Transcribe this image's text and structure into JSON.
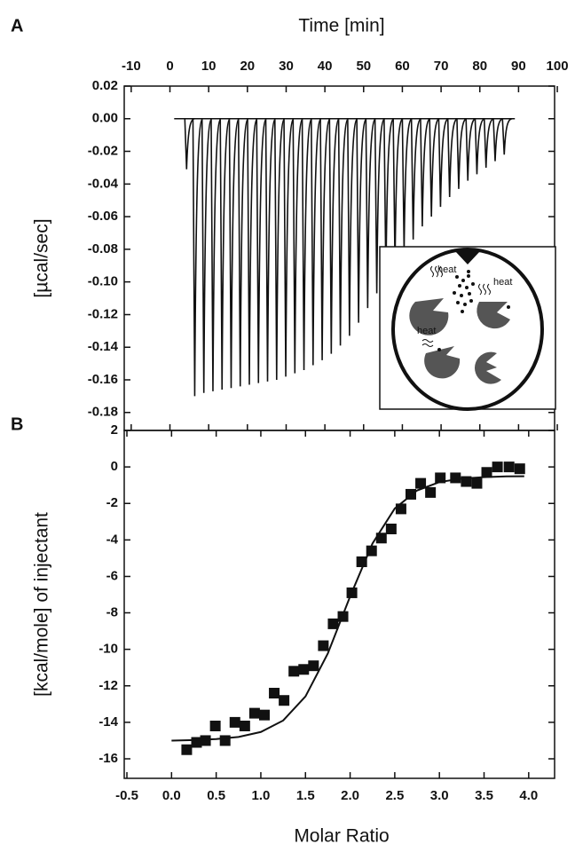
{
  "chart_data": [
    {
      "type": "peaks",
      "panel_label": "A",
      "x_label": "Time [min]",
      "y_label": "[µcal/sec]",
      "xlim": [
        -11.8,
        99.3
      ],
      "ylim": [
        -0.191,
        0.02
      ],
      "xticks": [
        -10,
        0,
        10,
        20,
        30,
        40,
        50,
        60,
        70,
        80,
        90,
        100
      ],
      "yticks": [
        0.02,
        {
          "value": 0,
          "label": "0.00"
        },
        -0.02,
        -0.04,
        -0.06,
        -0.08,
        {
          "value": -0.1,
          "label": "-0.10"
        },
        -0.12,
        -0.14,
        -0.16,
        -0.18
      ],
      "color": "#111",
      "x": [
        4.3,
        6.4,
        8.75,
        11.1,
        13.45,
        15.8,
        18.15,
        20.5,
        22.85,
        25.2,
        27.55,
        29.9,
        32.25,
        34.6,
        36.95,
        39.3,
        41.65,
        44.0,
        46.35,
        48.7,
        51.05,
        53.4,
        55.75,
        58.1,
        60.45,
        62.8,
        65.15,
        67.5,
        69.85,
        72.2,
        74.55,
        76.9,
        79.25,
        81.6,
        83.95,
        86.3
      ],
      "values": [
        -0.031,
        -0.17,
        -0.168,
        -0.167,
        -0.166,
        -0.165,
        -0.164,
        -0.163,
        -0.162,
        -0.161,
        -0.16,
        -0.158,
        -0.156,
        -0.154,
        -0.151,
        -0.148,
        -0.144,
        -0.139,
        -0.133,
        -0.125,
        -0.116,
        -0.107,
        -0.098,
        -0.09,
        -0.081,
        -0.074,
        -0.066,
        -0.06,
        -0.054,
        -0.048,
        -0.043,
        -0.038,
        -0.034,
        -0.03,
        -0.026,
        -0.022
      ],
      "inset_labels": [
        "heat",
        "heat",
        "heat"
      ]
    },
    {
      "type": "scatter",
      "panel_label": "B",
      "x_label": "Molar Ratio",
      "y_label": "[kcal/mole] of injectant",
      "xlim": [
        -0.53,
        4.29
      ],
      "ylim": [
        -17.07,
        2
      ],
      "xticks": [
        -0.5,
        {
          "value": 0,
          "label": "0.0"
        },
        0.5,
        {
          "value": 1,
          "label": "1.0"
        },
        1.5,
        {
          "value": 2,
          "label": "2.0"
        },
        2.5,
        {
          "value": 3,
          "label": "3.0"
        },
        3.5,
        {
          "value": 4,
          "label": "4.0"
        }
      ],
      "yticks": [
        2,
        0,
        -2,
        -4,
        -6,
        -8,
        -10,
        -12,
        -14,
        -16
      ],
      "series": [
        {
          "style": "markers",
          "color": "#111",
          "x": [
            0.17,
            0.28,
            0.38,
            0.49,
            0.6,
            0.71,
            0.82,
            0.93,
            1.04,
            1.15,
            1.26,
            1.37,
            1.48,
            1.59,
            1.7,
            1.81,
            1.92,
            2.02,
            2.13,
            2.24,
            2.35,
            2.46,
            2.57,
            2.68,
            2.79,
            2.9,
            3.01,
            3.18,
            3.3,
            3.42,
            3.53,
            3.65,
            3.78,
            3.9
          ],
          "values": [
            -15.5,
            -15.1,
            -15.0,
            -14.2,
            -15.0,
            -14.0,
            -14.2,
            -13.5,
            -13.6,
            -12.4,
            -12.8,
            -11.2,
            -11.1,
            -10.9,
            -9.8,
            -8.6,
            -8.2,
            -6.9,
            -5.2,
            -4.6,
            -3.9,
            -3.4,
            -2.3,
            -1.5,
            -0.9,
            -1.4,
            -0.6,
            -0.6,
            -0.8,
            -0.9,
            -0.3,
            0,
            0,
            -0.1
          ]
        },
        {
          "style": "line",
          "color": "#111",
          "x": [
            0,
            0.25,
            0.5,
            0.75,
            1.0,
            1.25,
            1.5,
            1.75,
            2.0,
            2.25,
            2.5,
            2.75,
            3.0,
            3.25,
            3.5,
            3.75,
            3.95
          ],
          "values": [
            -15.0,
            -14.97,
            -14.92,
            -14.8,
            -14.53,
            -13.9,
            -12.58,
            -10.23,
            -7.1,
            -4.2,
            -2.28,
            -1.29,
            -0.83,
            -0.64,
            -0.56,
            -0.52,
            -0.51
          ]
        }
      ]
    }
  ]
}
